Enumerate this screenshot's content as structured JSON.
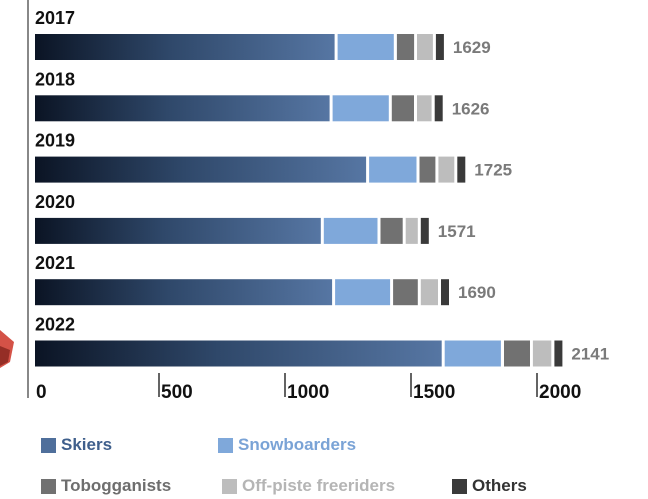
{
  "chart_data": {
    "type": "bar",
    "orientation": "horizontal",
    "stacked": true,
    "categories": [
      "2017",
      "2018",
      "2019",
      "2020",
      "2021",
      "2022"
    ],
    "totals": [
      1629,
      1626,
      1725,
      1571,
      1690,
      2141
    ],
    "series": [
      {
        "name": "Skiers",
        "color": "#4f6f9b",
        "values": [
          1195,
          1175,
          1320,
          1140,
          1185,
          1620
        ]
      },
      {
        "name": "Snowboarders",
        "color": "#7fa8da",
        "values": [
          235,
          235,
          200,
          225,
          230,
          235
        ]
      },
      {
        "name": "Tobogganists",
        "color": "#717171",
        "values": [
          80,
          100,
          75,
          100,
          110,
          115
        ]
      },
      {
        "name": "Off-piste freeriders",
        "color": "#bdbdbd",
        "values": [
          75,
          70,
          75,
          60,
          80,
          85
        ]
      },
      {
        "name": "Others",
        "color": "#3a3a3a",
        "values": [
          44,
          46,
          55,
          46,
          85,
          86
        ]
      }
    ],
    "x_ticks": [
      "0",
      "500",
      "1000",
      "1500",
      "2000"
    ],
    "xlim": [
      0,
      2250
    ],
    "grid": false,
    "legend_placement": "bottom",
    "colors": {
      "total_label": "#7a7a7a",
      "year_label": "#111111",
      "axis": "#111111"
    }
  }
}
